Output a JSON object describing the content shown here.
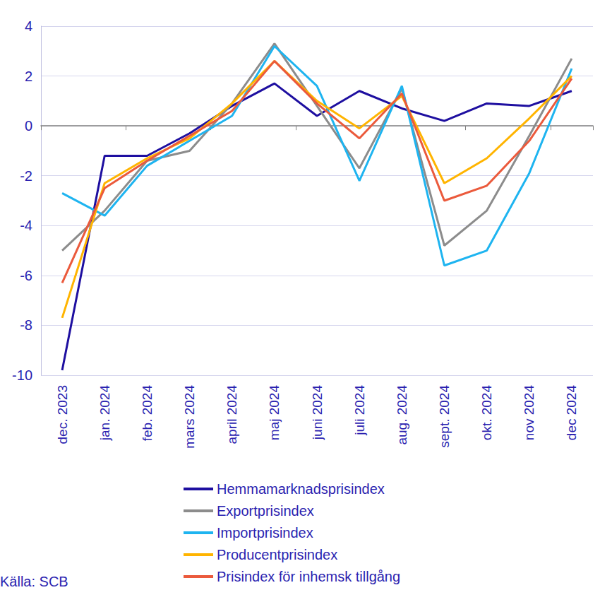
{
  "chart_data": {
    "type": "line",
    "categories": [
      "dec. 2023",
      "jan. 2024",
      "feb. 2024",
      "mars 2024",
      "april 2024",
      "maj 2024",
      "juni 2024",
      "juli 2024",
      "aug. 2024",
      "sept. 2024",
      "okt. 2024",
      "nov 2024",
      "dec 2024"
    ],
    "series": [
      {
        "name": "Hemmamarknadsprisindex",
        "color": "#1e0fa0",
        "values": [
          -9.8,
          -1.2,
          -1.2,
          -0.3,
          0.8,
          1.7,
          0.4,
          1.4,
          0.7,
          0.2,
          0.9,
          0.8,
          1.4
        ]
      },
      {
        "name": "Exportprisindex",
        "color": "#8c8c8c",
        "values": [
          -5.0,
          -3.4,
          -1.4,
          -1.0,
          0.9,
          3.3,
          0.8,
          -1.7,
          1.5,
          -4.8,
          -3.4,
          -0.4,
          2.7
        ]
      },
      {
        "name": "Importprisindex",
        "color": "#1eb4f0",
        "values": [
          -2.7,
          -3.6,
          -1.6,
          -0.6,
          0.4,
          3.2,
          1.6,
          -2.2,
          1.6,
          -5.6,
          -5.0,
          -1.9,
          2.3
        ]
      },
      {
        "name": "Producentprisindex",
        "color": "#ffb400",
        "values": [
          -7.7,
          -2.3,
          -1.3,
          -0.5,
          0.9,
          2.6,
          1.0,
          -0.1,
          1.2,
          -2.3,
          -1.3,
          0.3,
          2.0
        ]
      },
      {
        "name": "Prisindex för inhemsk tillgång",
        "color": "#eb5a3c",
        "values": [
          -6.3,
          -2.5,
          -1.4,
          -0.4,
          0.6,
          2.6,
          0.9,
          -0.5,
          1.3,
          -3.0,
          -2.4,
          -0.6,
          1.9
        ]
      }
    ],
    "ylim": [
      -10,
      4
    ],
    "yticks": [
      -10,
      -8,
      -6,
      -4,
      -2,
      0,
      2,
      4
    ],
    "grid": true,
    "legend": "bottom",
    "note": "Källa: SCB"
  }
}
